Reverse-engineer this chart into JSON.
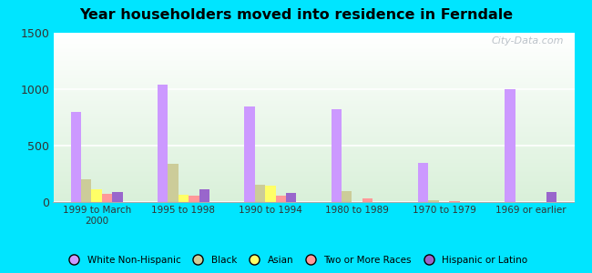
{
  "title": "Year householders moved into residence in Ferndale",
  "categories": [
    "1999 to March\n2000",
    "1995 to 1998",
    "1990 to 1994",
    "1980 to 1989",
    "1970 to 1979",
    "1969 or earlier"
  ],
  "series": {
    "White Non-Hispanic": [
      800,
      1040,
      850,
      820,
      350,
      1000
    ],
    "Black": [
      200,
      340,
      150,
      100,
      20,
      0
    ],
    "Asian": [
      115,
      65,
      145,
      0,
      0,
      0
    ],
    "Two or More Races": [
      70,
      60,
      55,
      35,
      5,
      0
    ],
    "Hispanic or Latino": [
      85,
      110,
      80,
      0,
      0,
      90
    ]
  },
  "colors": {
    "White Non-Hispanic": "#cc99ff",
    "Black": "#cccc99",
    "Asian": "#ffff66",
    "Two or More Races": "#ff9999",
    "Hispanic or Latino": "#9966cc"
  },
  "ylim": [
    0,
    1500
  ],
  "yticks": [
    0,
    500,
    1000,
    1500
  ],
  "outer_background": "#00e5ff",
  "watermark": "City-Data.com"
}
